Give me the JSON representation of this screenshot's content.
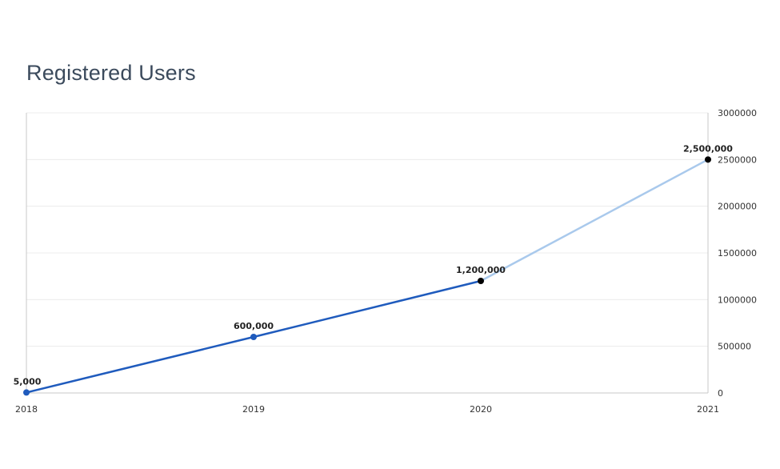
{
  "title": "Registered Users",
  "colors": {
    "actual_line": "#1f5bbd",
    "projected_line": "#a9c9ec",
    "actual_point": "#1f5bbd",
    "projected_point": "#000000",
    "grid": "#ececec",
    "axis": "#c8c8c8"
  },
  "chart_data": {
    "type": "line",
    "title": "Registered Users",
    "categories": [
      "2018",
      "2019",
      "2020",
      "2021"
    ],
    "series": [
      {
        "values": [
          5000,
          600000,
          1200000,
          2500000
        ],
        "data_labels": [
          "5,000",
          "600,000",
          "1,200,000",
          "2,500,000"
        ],
        "point_styles": [
          "actual",
          "actual",
          "projected",
          "projected"
        ],
        "segment_styles": [
          "actual",
          "actual",
          "projected"
        ]
      }
    ],
    "ylim": [
      0,
      3000000
    ],
    "yticks": [
      "0",
      "500000",
      "1000000",
      "1500000",
      "2000000",
      "2500000",
      "3000000"
    ],
    "y_axis_side": "right",
    "grid": true,
    "legend": "none"
  }
}
